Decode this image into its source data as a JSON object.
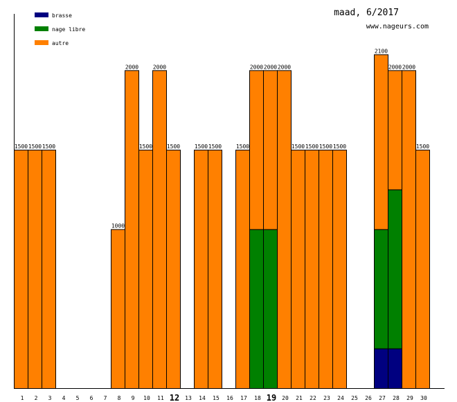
{
  "chart_data": {
    "type": "bar",
    "stacked": true,
    "title": "maad, 6/2017",
    "subtitle": "www.nageurs.com",
    "categories": [
      "1",
      "2",
      "3",
      "4",
      "5",
      "6",
      "7",
      "8",
      "9",
      "10",
      "11",
      "12",
      "13",
      "14",
      "15",
      "16",
      "17",
      "18",
      "19",
      "20",
      "21",
      "22",
      "23",
      "24",
      "25",
      "26",
      "27",
      "28",
      "29",
      "30"
    ],
    "highlighted_categories": [
      "12",
      "19"
    ],
    "series": [
      {
        "name": "brasse",
        "color": "#000080",
        "values": [
          0,
          0,
          0,
          0,
          0,
          0,
          0,
          0,
          0,
          0,
          0,
          0,
          0,
          0,
          0,
          0,
          0,
          0,
          0,
          0,
          0,
          0,
          0,
          0,
          0,
          0,
          250,
          250,
          0,
          0
        ]
      },
      {
        "name": "nage libre",
        "color": "#008000",
        "values": [
          0,
          0,
          0,
          0,
          0,
          0,
          0,
          0,
          0,
          0,
          0,
          0,
          0,
          0,
          0,
          0,
          0,
          1000,
          1000,
          0,
          0,
          0,
          0,
          0,
          0,
          0,
          750,
          1000,
          0,
          0
        ]
      },
      {
        "name": "autre",
        "color": "#ff8000",
        "values": [
          1500,
          1500,
          1500,
          0,
          0,
          0,
          0,
          1000,
          2000,
          1500,
          2000,
          1500,
          0,
          1500,
          1500,
          0,
          1500,
          1000,
          1000,
          2000,
          1500,
          1500,
          1500,
          1500,
          0,
          0,
          1100,
          750,
          2000,
          1500
        ]
      }
    ],
    "totals": [
      1500,
      1500,
      1500,
      0,
      0,
      0,
      0,
      1000,
      2000,
      1500,
      2000,
      1500,
      0,
      1500,
      1500,
      0,
      1500,
      2000,
      2000,
      2000,
      1500,
      1500,
      1500,
      1500,
      0,
      0,
      2100,
      2000,
      2000,
      1500
    ],
    "ylim": [
      0,
      2350
    ],
    "legend": "top-left",
    "grid": false
  }
}
